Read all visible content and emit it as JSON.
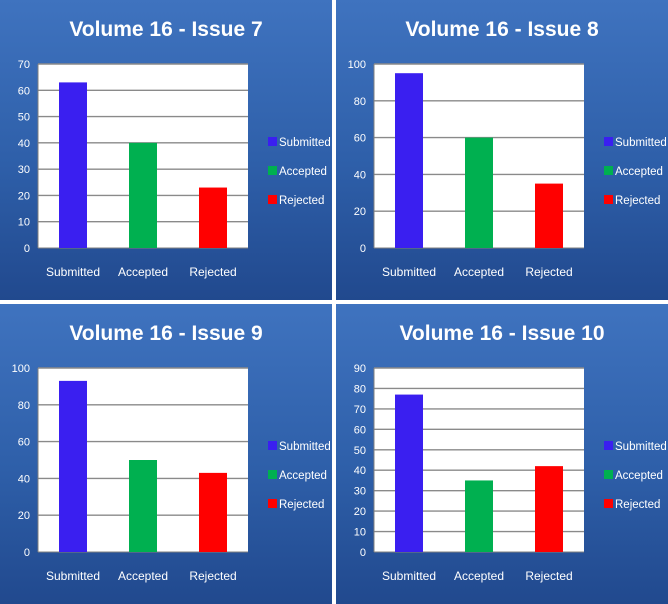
{
  "colors": {
    "submitted": "#3a1ff0",
    "accepted": "#00b050",
    "rejected": "#ff0000",
    "panel": "#2f62ab"
  },
  "chart_data": [
    {
      "type": "bar",
      "title": "Volume 16 - Issue 7",
      "categories": [
        "Submitted",
        "Accepted",
        "Rejected"
      ],
      "values": [
        63,
        40,
        23
      ],
      "ylim": [
        0,
        70
      ],
      "yticks": [
        0,
        10,
        20,
        30,
        40,
        50,
        60,
        70
      ],
      "legend": [
        "Submitted",
        "Accepted",
        "Rejected"
      ],
      "legend_position": "right",
      "grid": true
    },
    {
      "type": "bar",
      "title": "Volume 16 - Issue 8",
      "categories": [
        "Submitted",
        "Accepted",
        "Rejected"
      ],
      "values": [
        95,
        60,
        35
      ],
      "ylim": [
        0,
        100
      ],
      "yticks": [
        0,
        20,
        40,
        60,
        80,
        100
      ],
      "legend": [
        "Submitted",
        "Accepted",
        "Rejected"
      ],
      "legend_position": "right",
      "grid": true
    },
    {
      "type": "bar",
      "title": "Volume 16 - Issue 9",
      "categories": [
        "Submitted",
        "Accepted",
        "Rejected"
      ],
      "values": [
        93,
        50,
        43
      ],
      "ylim": [
        0,
        100
      ],
      "yticks": [
        0,
        20,
        40,
        60,
        80,
        100
      ],
      "legend": [
        "Submitted",
        "Accepted",
        "Rejected"
      ],
      "legend_position": "right",
      "grid": true
    },
    {
      "type": "bar",
      "title": "Volume 16 - Issue 10",
      "categories": [
        "Submitted",
        "Accepted",
        "Rejected"
      ],
      "values": [
        77,
        35,
        42
      ],
      "ylim": [
        0,
        90
      ],
      "yticks": [
        0,
        10,
        20,
        30,
        40,
        50,
        60,
        70,
        80,
        90
      ],
      "legend": [
        "Submitted",
        "Accepted",
        "Rejected"
      ],
      "legend_position": "right",
      "grid": true
    }
  ]
}
